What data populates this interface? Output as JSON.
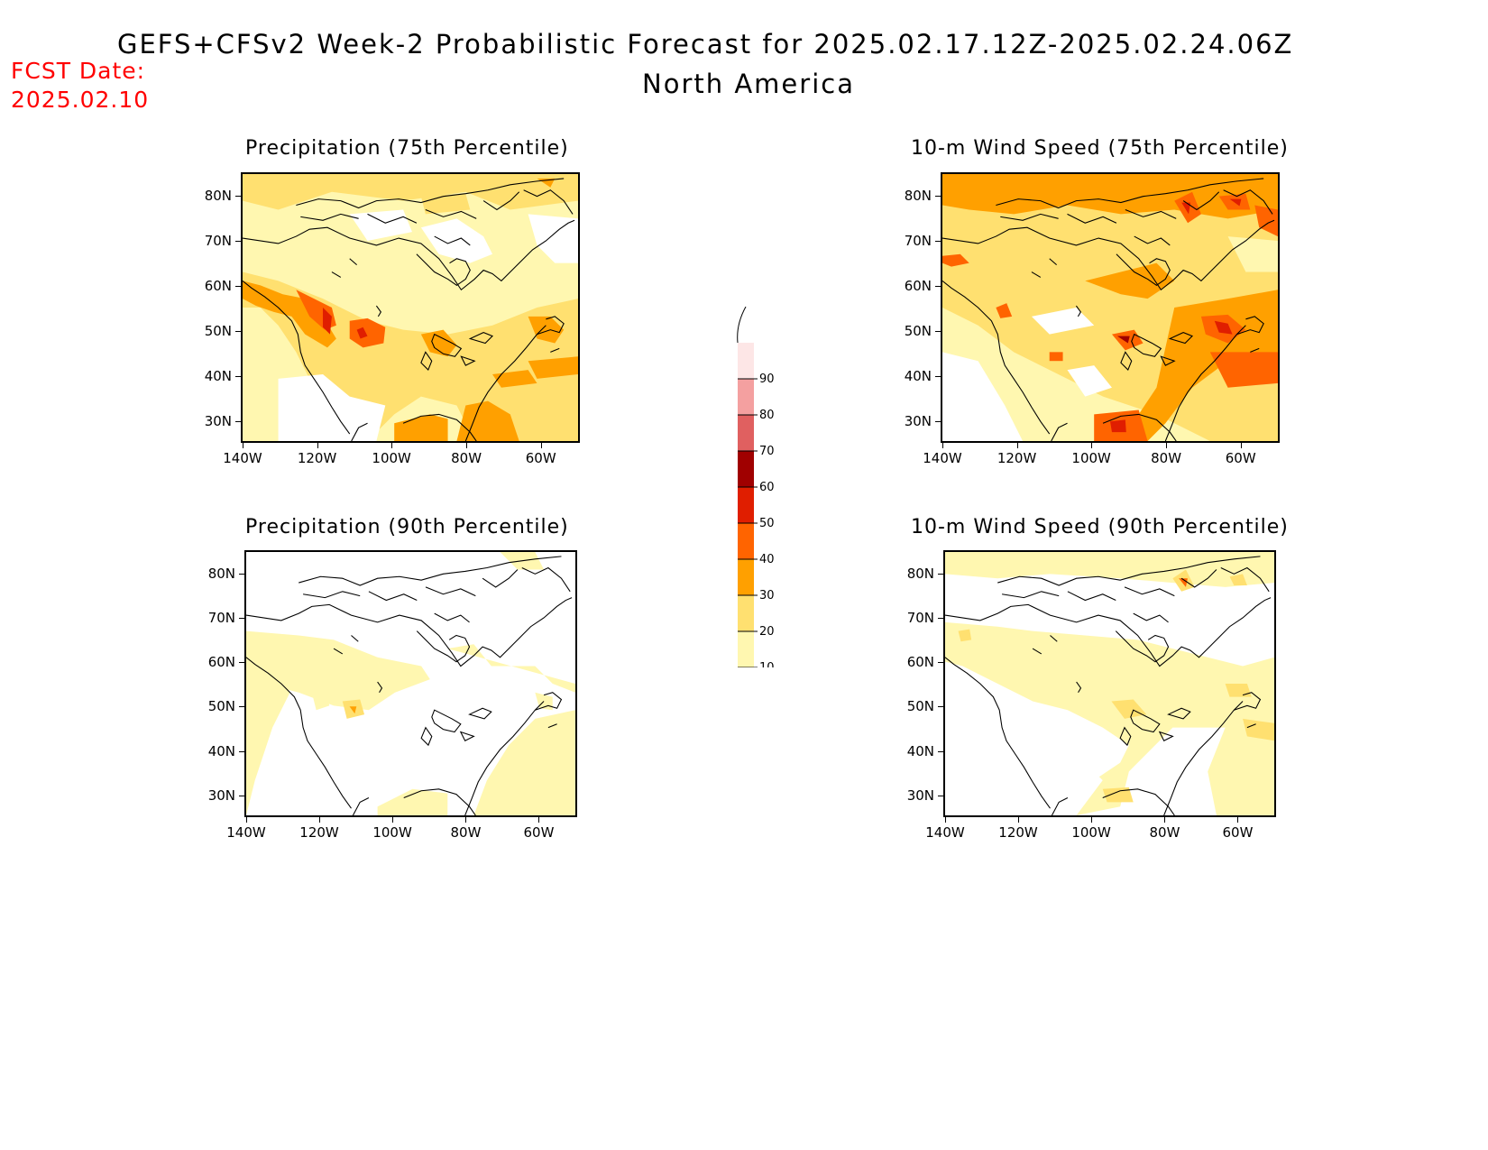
{
  "header": {
    "title": "GEFS+CFSv2 Week-2 Probabilistic Forecast for 2025.02.17.12Z-2025.02.24.06Z",
    "subtitle": "North America",
    "fcst_label": "FCST Date:",
    "fcst_date": "2025.02.10"
  },
  "panels": [
    {
      "title": "Precipitation (75th Percentile)"
    },
    {
      "title": "10-m Wind Speed (75th Percentile)"
    },
    {
      "title": "Precipitation (90th Percentile)"
    },
    {
      "title": "10-m Wind Speed (90th Percentile)"
    }
  ],
  "axes": {
    "lat_labels": [
      "80N",
      "70N",
      "60N",
      "50N",
      "40N",
      "30N"
    ],
    "lon_labels": [
      "140W",
      "120W",
      "100W",
      "80W",
      "60W"
    ]
  },
  "colorbar": {
    "labels": [
      "90",
      "80",
      "70",
      "60",
      "50",
      "40",
      "30",
      "20",
      "10"
    ],
    "colors": [
      "#fde6e6",
      "#f4a0a0",
      "#e06060",
      "#a00000",
      "#e01e00",
      "#ff6400",
      "#ffa000",
      "#ffe070",
      "#fff7b0"
    ]
  }
}
